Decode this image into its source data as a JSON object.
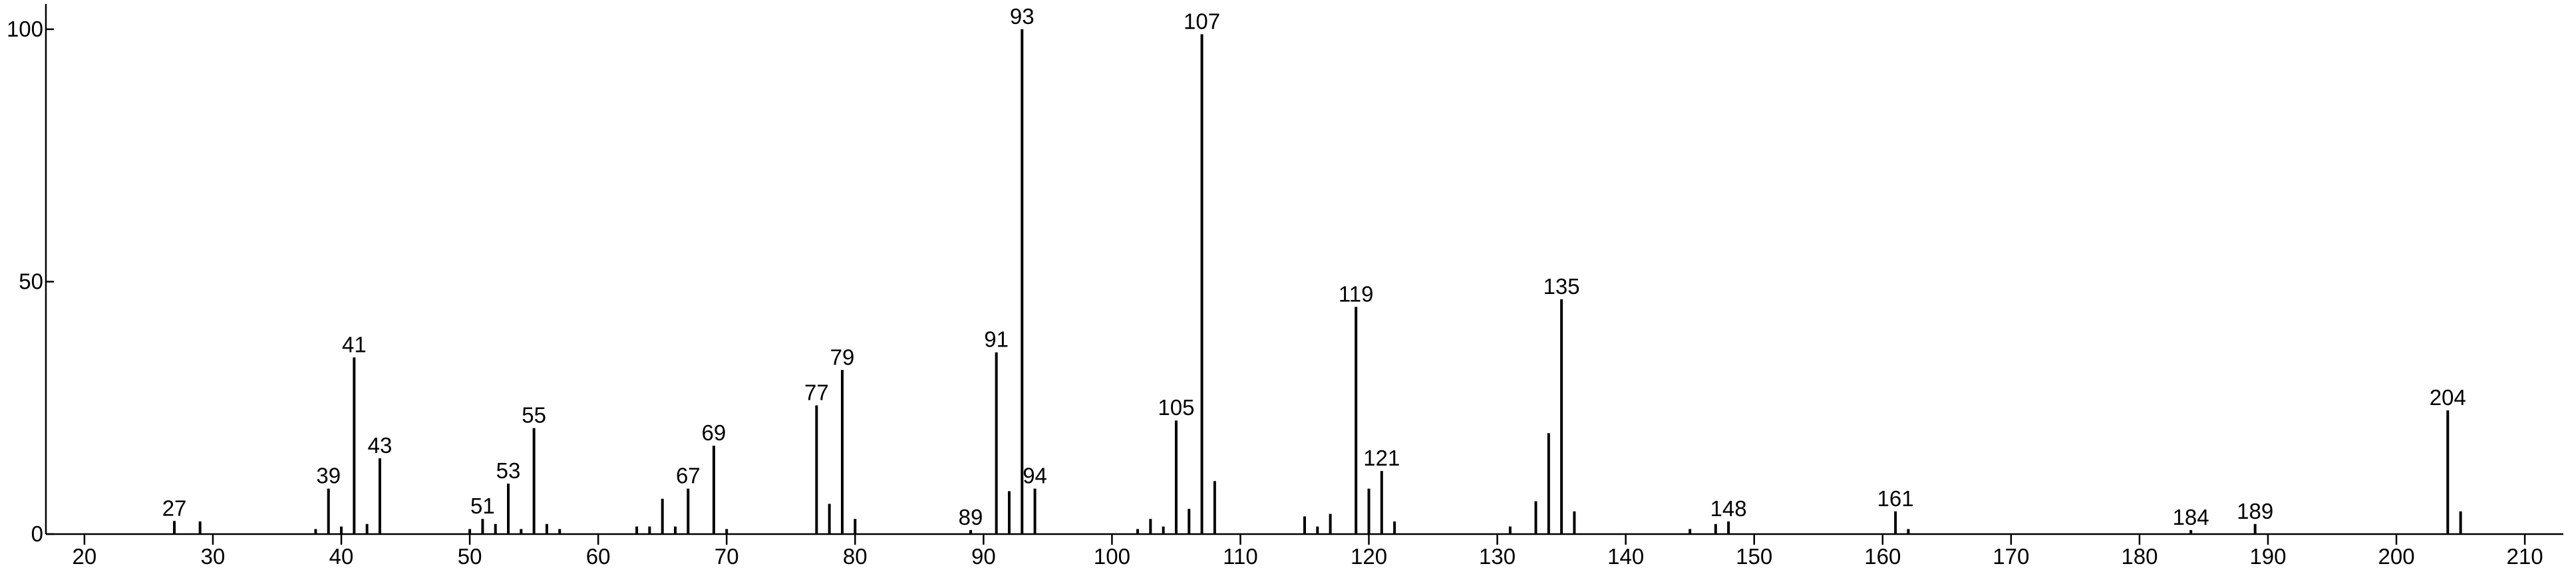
{
  "chart_data": {
    "type": "stem",
    "x": [
      27,
      29,
      38,
      39,
      40,
      41,
      42,
      43,
      50,
      51,
      52,
      53,
      54,
      55,
      56,
      57,
      63,
      64,
      65,
      66,
      67,
      69,
      70,
      77,
      78,
      79,
      80,
      89,
      91,
      92,
      93,
      94,
      102,
      103,
      104,
      105,
      106,
      107,
      108,
      115,
      116,
      117,
      119,
      120,
      121,
      122,
      131,
      133,
      134,
      135,
      136,
      145,
      147,
      148,
      161,
      162,
      184,
      189,
      204,
      205
    ],
    "values": [
      2.6,
      2.5,
      1,
      9,
      1.5,
      35,
      2,
      15,
      1,
      3,
      2,
      10,
      1,
      21,
      2,
      1,
      1.5,
      1.5,
      7,
      1.5,
      9,
      17.5,
      1,
      25.5,
      6,
      32.5,
      3,
      0.8,
      36,
      8.5,
      100,
      9,
      1,
      3,
      1.5,
      22.5,
      5,
      99,
      10.5,
      3.5,
      1.5,
      4,
      45,
      9,
      12.5,
      2.5,
      1.5,
      6.5,
      20,
      46.5,
      4.5,
      1,
      2,
      2.5,
      4.5,
      1,
      0.8,
      2,
      24.5,
      4.5
    ],
    "labels": [
      27,
      null,
      null,
      39,
      null,
      41,
      null,
      43,
      null,
      51,
      null,
      53,
      null,
      55,
      null,
      null,
      null,
      null,
      null,
      null,
      67,
      69,
      null,
      77,
      null,
      79,
      null,
      89,
      91,
      null,
      93,
      94,
      null,
      null,
      null,
      105,
      null,
      107,
      null,
      null,
      null,
      null,
      119,
      null,
      121,
      null,
      null,
      null,
      null,
      135,
      null,
      null,
      null,
      148,
      161,
      null,
      184,
      189,
      204,
      null
    ],
    "color": "#000000",
    "xlim": [
      17,
      213
    ],
    "xticks": [
      20,
      30,
      40,
      50,
      60,
      70,
      80,
      90,
      100,
      110,
      120,
      130,
      140,
      150,
      160,
      170,
      180,
      190,
      200,
      210
    ],
    "ylim": [
      0,
      105
    ],
    "yticks": [
      0,
      50,
      100
    ]
  }
}
